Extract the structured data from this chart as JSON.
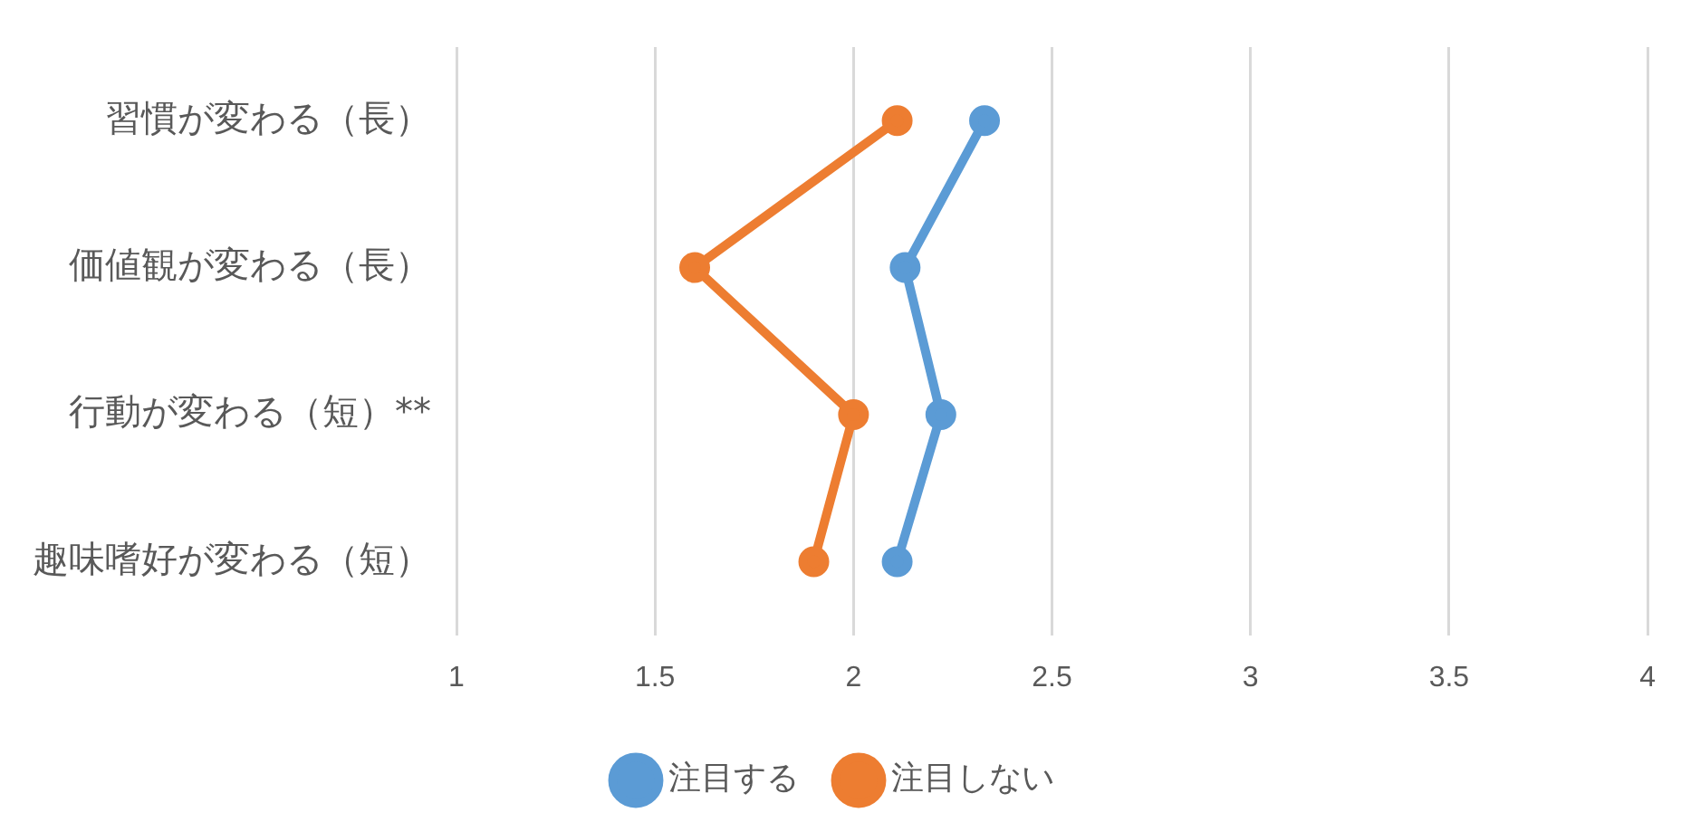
{
  "chart_data": {
    "type": "line",
    "orientation": "horizontal",
    "categories": [
      "習慣が変わる（長）",
      "価値観が変わる（長）",
      "行動が変わる（短）**",
      "趣味嗜好が変わる（短）"
    ],
    "series": [
      {
        "name": "注目する",
        "color": "#5b9bd5",
        "values": [
          2.33,
          2.13,
          2.22,
          2.11
        ]
      },
      {
        "name": "注目しない",
        "color": "#ed7d31",
        "values": [
          2.11,
          1.6,
          2.0,
          1.9
        ]
      }
    ],
    "xlim": [
      1,
      4
    ],
    "xticks": [
      1,
      1.5,
      2,
      2.5,
      3,
      3.5,
      4
    ],
    "grid": "x",
    "legend": "bottom",
    "marker": "circle",
    "line_style": "solid"
  }
}
